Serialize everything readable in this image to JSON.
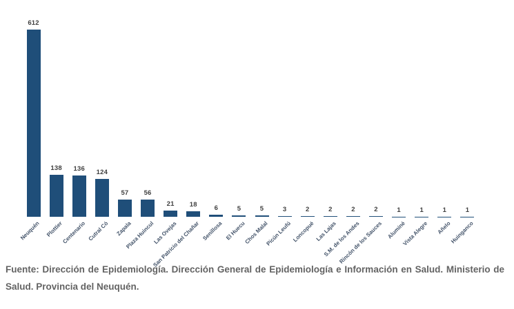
{
  "chart_data": {
    "type": "bar",
    "title": "",
    "xlabel": "",
    "ylabel": "",
    "legend": false,
    "grid": false,
    "ylim": [
      0,
      650
    ],
    "categories": [
      "Neuquén",
      "Plottier",
      "Centenario",
      "Cutral Có",
      "Zapala",
      "Plaza Huincul",
      "Las Ovejas",
      "San Patricio del Chañar",
      "Senillosa",
      "El Huecu",
      "Chos Malal",
      "Picún Leufú",
      "Loncopué",
      "Las Lajas",
      "S.M. de los Andes",
      "Rincón de los Sauces",
      "Aluminé",
      "Vista Alegre",
      "Añelo",
      "Huinganco"
    ],
    "values": [
      612,
      138,
      136,
      124,
      57,
      56,
      21,
      18,
      6,
      5,
      5,
      3,
      2,
      2,
      2,
      2,
      1,
      1,
      1,
      1
    ],
    "bar_color": "#1F4E79",
    "value_label_color": "#3F3F3F",
    "category_label_color": "#44546A"
  },
  "footer": {
    "full_text": "Fuente: Dirección de Epidemiología. Dirección General de Epidemiología e Información en Salud. Ministerio de Salud. Provincia del Neuquén.",
    "line1": "Fuente: Dirección de Epidemiología. Dirección General de Epidemiología e Información en Salud. Ministerio de",
    "line2": "Salud. Provincia del Neuquén."
  }
}
